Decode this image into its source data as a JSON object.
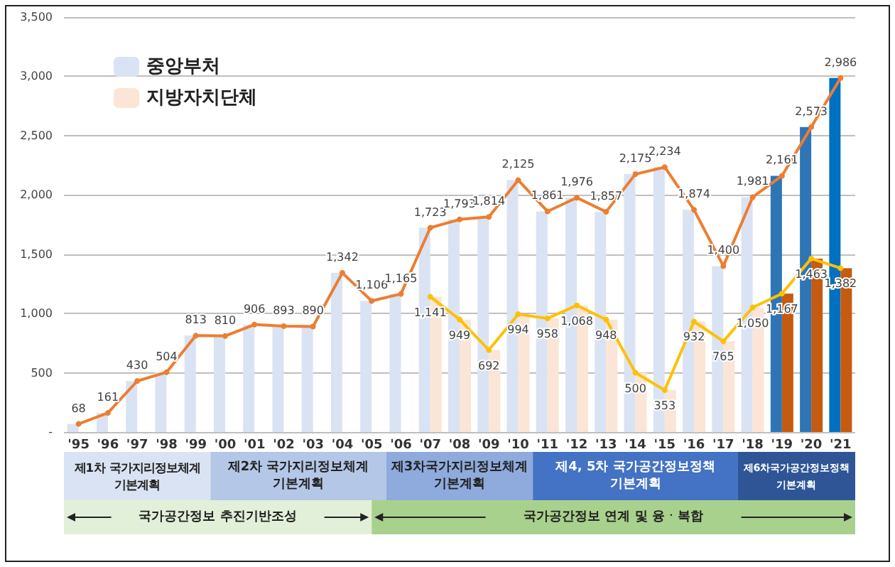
{
  "chart_data": {
    "type": "bar",
    "categories": [
      "'95",
      "'96",
      "'97",
      "'98",
      "'99",
      "'00",
      "'01",
      "'02",
      "'03",
      "'04",
      "'05",
      "'06",
      "'07",
      "'08",
      "'09",
      "'10",
      "'11",
      "'12",
      "'13",
      "'14",
      "'15",
      "'16",
      "'17",
      "'18",
      "'19",
      "'20",
      "'21"
    ],
    "series": [
      {
        "name": "중앙부처",
        "color": "#dae3f3",
        "colors": [
          "#dae3f3",
          "#dae3f3",
          "#dae3f3",
          "#dae3f3",
          "#dae3f3",
          "#dae3f3",
          "#dae3f3",
          "#dae3f3",
          "#dae3f3",
          "#dae3f3",
          "#dae3f3",
          "#dae3f3",
          "#dae3f3",
          "#dae3f3",
          "#dae3f3",
          "#dae3f3",
          "#dae3f3",
          "#dae3f3",
          "#dae3f3",
          "#dae3f3",
          "#dae3f3",
          "#dae3f3",
          "#dae3f3",
          "#dae3f3",
          "#2e75b6",
          "#2e75b6",
          "#0070c0"
        ],
        "values": [
          68,
          161,
          430,
          504,
          813,
          810,
          906,
          893,
          890,
          1342,
          1106,
          1165,
          1723,
          1793,
          1814,
          2125,
          1861,
          1976,
          1857,
          2175,
          2234,
          1874,
          1400,
          1981,
          2161,
          2573,
          2986
        ]
      },
      {
        "name": "지방자치단체",
        "color": "#fbe5d6",
        "colors": [
          "#fbe5d6",
          "#fbe5d6",
          "#fbe5d6",
          "#fbe5d6",
          "#fbe5d6",
          "#fbe5d6",
          "#fbe5d6",
          "#fbe5d6",
          "#fbe5d6",
          "#fbe5d6",
          "#fbe5d6",
          "#fbe5d6",
          "#fbe5d6",
          "#fbe5d6",
          "#fbe5d6",
          "#fbe5d6",
          "#fbe5d6",
          "#fbe5d6",
          "#fbe5d6",
          "#fbe5d6",
          "#fbe5d6",
          "#fbe5d6",
          "#fbe5d6",
          "#fbe5d6",
          "#c55a11",
          "#c55a11",
          "#c55a11"
        ],
        "values": [
          null,
          null,
          null,
          null,
          null,
          null,
          null,
          null,
          null,
          null,
          null,
          null,
          1141,
          949,
          692,
          994,
          958,
          1068,
          948,
          500,
          353,
          932,
          765,
          1050,
          1167,
          1463,
          1382
        ]
      },
      {
        "type": "line",
        "color": "#ed7d31",
        "value_labels": [
          "68",
          "161",
          "430",
          "504",
          "813",
          "810",
          "906",
          "893",
          "890",
          "1,342",
          "1,106",
          "1,165",
          "1,723",
          "1,793",
          "1,814",
          "2,125",
          "1,861",
          "1,976",
          "1,857",
          "2,175",
          "2,234",
          "1,874",
          "1,400",
          "1,981",
          "2,161",
          "2,573",
          "2,986"
        ],
        "values": [
          68,
          161,
          430,
          504,
          813,
          810,
          906,
          893,
          890,
          1342,
          1106,
          1165,
          1723,
          1793,
          1814,
          2125,
          1861,
          1976,
          1857,
          2175,
          2234,
          1874,
          1400,
          1981,
          2161,
          2573,
          2986
        ]
      },
      {
        "type": "line",
        "color": "#ffc000",
        "value_labels": [
          null,
          null,
          null,
          null,
          null,
          null,
          null,
          null,
          null,
          null,
          null,
          null,
          "1,141",
          "949",
          "692",
          "994",
          "958",
          "1,068",
          "948",
          "500",
          "353",
          "932",
          "765",
          "1,050",
          "1,167",
          "1,463",
          "1,382"
        ],
        "values": [
          null,
          null,
          null,
          null,
          null,
          null,
          null,
          null,
          null,
          null,
          null,
          null,
          1141,
          949,
          692,
          994,
          958,
          1068,
          948,
          500,
          353,
          932,
          765,
          1050,
          1167,
          1463,
          1382
        ]
      }
    ],
    "ylim": [
      0,
      3500
    ],
    "yticks": [
      {
        "value": 0,
        "label": "-"
      },
      {
        "value": 500,
        "label": "500"
      },
      {
        "value": 1000,
        "label": "1,000"
      },
      {
        "value": 1500,
        "label": "1,500"
      },
      {
        "value": 2000,
        "label": "2,000"
      },
      {
        "value": 2500,
        "label": "2,500"
      },
      {
        "value": 3000,
        "label": "3,000"
      },
      {
        "value": 3500,
        "label": "3,500"
      }
    ],
    "grid": "y",
    "legend": "top left",
    "marker": "circle",
    "line_style": "solid",
    "annotations": [
      "제1차 국가지리정보체계\n기본계획",
      "제2차 국가지리정보체계\n기본계획",
      "제3차국가지리정보체계\n기본계획",
      "제4, 5차 국가공간정보정책\n기본계획",
      "제6차국가공간정보정책\n기본계획",
      "국가공간정보 추진기반조성",
      "국가공간정보 연계 및 융ㆍ복합"
    ]
  }
}
